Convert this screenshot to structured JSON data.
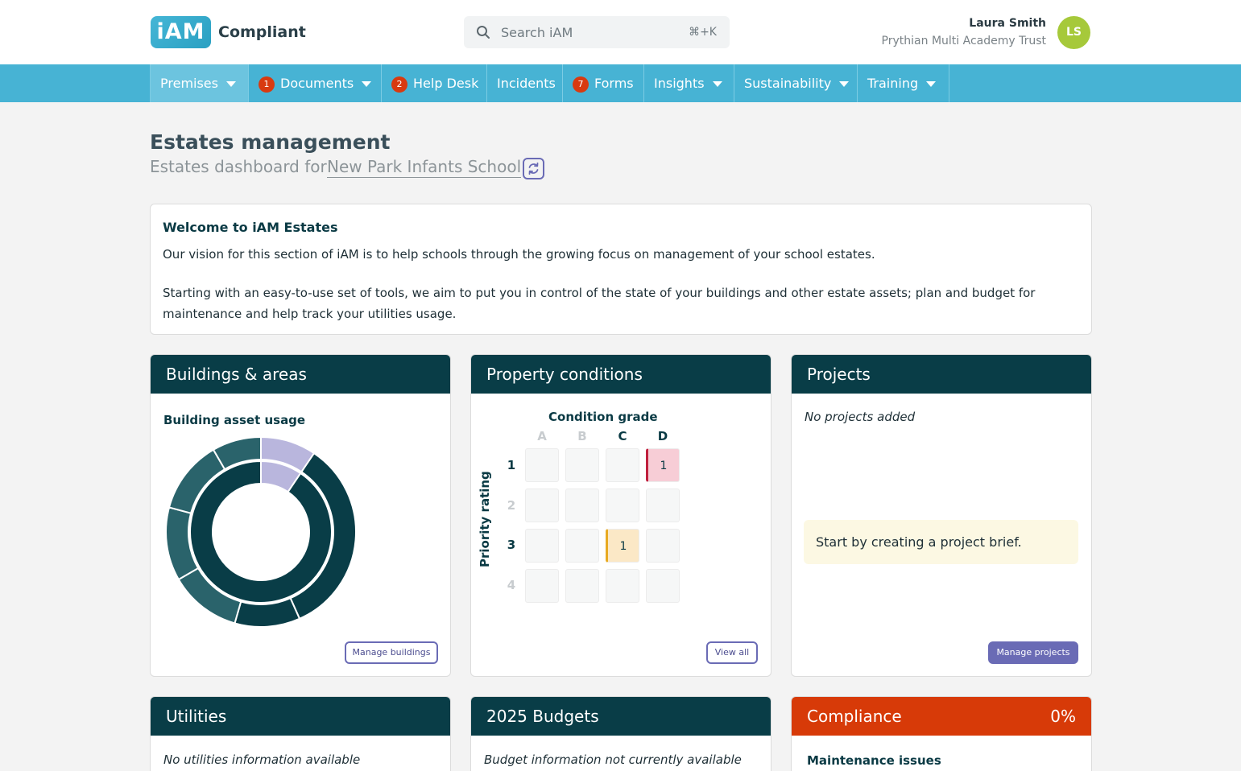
{
  "app": {
    "logo_mark": "iAM",
    "logo_text": "Compliant"
  },
  "search": {
    "placeholder": "Search iAM",
    "shortcut": "⌘+K"
  },
  "user": {
    "name": "Laura Smith",
    "organisation": "Prythian Multi Academy Trust",
    "initials": "LS",
    "avatar_color": "#a6c93a"
  },
  "nav": {
    "items": [
      {
        "label": "Premises",
        "badge": null,
        "dropdown": true,
        "active": true
      },
      {
        "label": "Documents",
        "badge": "1",
        "dropdown": true,
        "active": false
      },
      {
        "label": "Help Desk",
        "badge": "2",
        "dropdown": false,
        "active": false
      },
      {
        "label": "Incidents",
        "badge": null,
        "dropdown": false,
        "active": false
      },
      {
        "label": "Forms",
        "badge": "7",
        "dropdown": false,
        "active": false
      },
      {
        "label": "Insights",
        "badge": null,
        "dropdown": true,
        "active": false
      },
      {
        "label": "Sustainability",
        "badge": null,
        "dropdown": true,
        "active": false
      },
      {
        "label": "Training",
        "badge": null,
        "dropdown": true,
        "active": false
      }
    ]
  },
  "page": {
    "title": "Estates management",
    "subtitle_prefix": "Estates dashboard for",
    "school": "New Park Infants School"
  },
  "welcome": {
    "title": "Welcome to iAM Estates",
    "paragraph1": "Our vision for this section of iAM is to help schools through the growing focus on management of your school estates.",
    "paragraph2": "Starting with an easy-to-use set of tools, we aim to put you in control of the state of your buildings and other estate assets; plan and budget for maintenance and help track your utilities usage."
  },
  "buildings": {
    "title": "Buildings & areas",
    "subtitle": "Building asset usage",
    "button": "Manage buildings",
    "donut_colors": {
      "primary": "#093d47",
      "secondary": "#2a636b",
      "highlight": "#b9b6dd"
    }
  },
  "conditions": {
    "title": "Property conditions",
    "grid_title": "Condition grade",
    "axis_label": "Priority rating",
    "grades": [
      "A",
      "B",
      "C",
      "D"
    ],
    "priorities": [
      "1",
      "2",
      "3",
      "4"
    ],
    "active_grades": [
      "C",
      "D"
    ],
    "active_priorities": [
      "1",
      "3"
    ],
    "cells": [
      {
        "priority": "1",
        "grade": "D",
        "count": "1",
        "level": "red"
      },
      {
        "priority": "3",
        "grade": "C",
        "count": "1",
        "level": "yellow"
      }
    ],
    "button": "View all"
  },
  "projects": {
    "title": "Projects",
    "empty": "No projects added",
    "note": "Start by creating a project brief.",
    "button": "Manage projects"
  },
  "utilities": {
    "title": "Utilities",
    "empty": "No utilities information available"
  },
  "budgets": {
    "title": "2025 Budgets",
    "empty": "Budget information not currently available"
  },
  "compliance": {
    "title": "Compliance",
    "percent": "0%",
    "subtitle": "Maintenance issues"
  }
}
